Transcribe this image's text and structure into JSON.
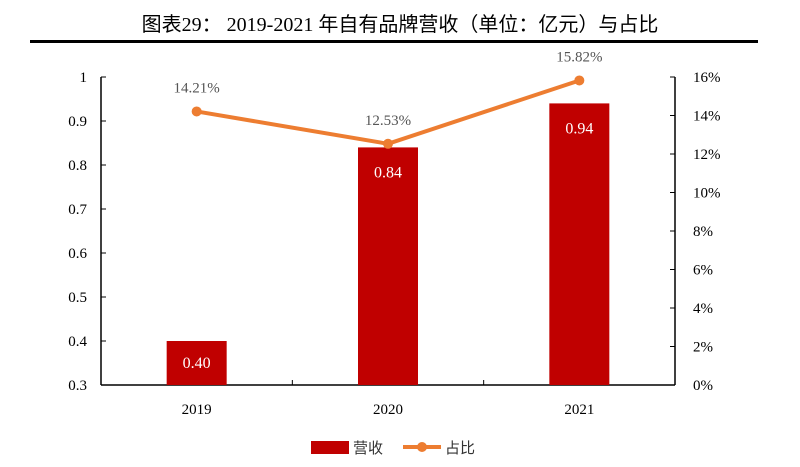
{
  "chart_data": {
    "type": "bar+line",
    "title": "图表29：    2019-2021 年自有品牌营收（单位：亿元）与占比",
    "categories": [
      "2019",
      "2020",
      "2021"
    ],
    "series": [
      {
        "name": "营收",
        "type": "bar",
        "axis": "left",
        "values": [
          0.4,
          0.84,
          0.94
        ],
        "labels": [
          "0.40",
          "0.84",
          "0.94"
        ],
        "color": "#C00000"
      },
      {
        "name": "占比",
        "type": "line",
        "axis": "right",
        "values": [
          14.21,
          12.53,
          15.82
        ],
        "labels": [
          "14.21%",
          "12.53%",
          "15.82%"
        ],
        "color": "#ED7D31"
      }
    ],
    "left_axis": {
      "ylim": [
        0.3,
        1
      ],
      "ticks": [
        "0.3",
        "0.4",
        "0.5",
        "0.6",
        "0.7",
        "0.8",
        "0.9",
        "1"
      ]
    },
    "right_axis": {
      "ylim": [
        0,
        16
      ],
      "ticks": [
        "0%",
        "2%",
        "4%",
        "6%",
        "8%",
        "10%",
        "12%",
        "14%",
        "16%"
      ]
    },
    "grid": false,
    "legend": "bottom"
  }
}
